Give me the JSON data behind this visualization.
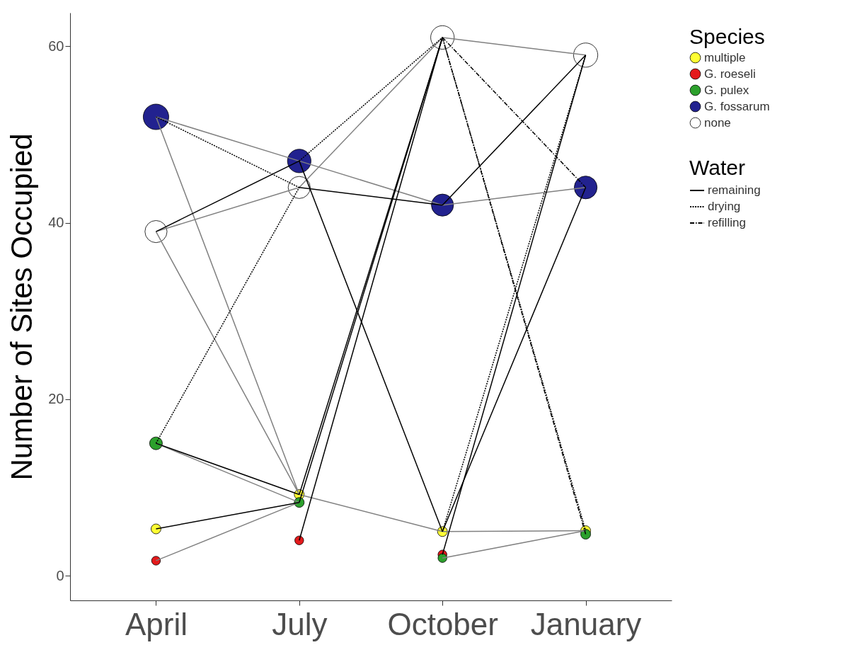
{
  "chart_data": {
    "type": "scatter",
    "ylabel": "Number of Sites Occupied",
    "legend_title": "Species",
    "annotations": [
      "Water"
    ],
    "categories": [
      "April",
      "July",
      "October",
      "January"
    ],
    "ylim": [
      -2.8,
      63.8
    ],
    "yticks": [
      0,
      20,
      40,
      60
    ],
    "legend": "top right",
    "series": [
      {
        "type": "line",
        "color": "#808080",
        "line_style": "solid",
        "x": [
          "April",
          "July"
        ],
        "values": [
          52,
          47
        ]
      },
      {
        "type": "line",
        "color": "#808080",
        "line_style": "solid",
        "x": [
          "April",
          "July"
        ],
        "values": [
          39,
          44
        ]
      },
      {
        "type": "line",
        "color": "#808080",
        "line_style": "solid",
        "x": [
          "July",
          "October"
        ],
        "values": [
          44,
          61
        ]
      },
      {
        "type": "line",
        "color": "#808080",
        "line_style": "solid",
        "x": [
          "July",
          "October"
        ],
        "values": [
          47,
          42
        ]
      },
      {
        "type": "line",
        "color": "#808080",
        "line_style": "solid",
        "x": [
          "October",
          "January"
        ],
        "values": [
          61,
          59
        ]
      },
      {
        "type": "line",
        "color": "#808080",
        "line_style": "solid",
        "x": [
          "October",
          "January"
        ],
        "values": [
          42,
          44
        ]
      },
      {
        "type": "line",
        "color": "#808080",
        "line_style": "solid",
        "x": [
          "April",
          "July"
        ],
        "values": [
          15,
          8.3
        ]
      },
      {
        "type": "line",
        "color": "#808080",
        "line_style": "solid",
        "x": [
          "April",
          "July"
        ],
        "values": [
          39,
          9.2
        ]
      },
      {
        "type": "line",
        "color": "#808080",
        "line_style": "solid",
        "x": [
          "April",
          "July"
        ],
        "values": [
          52,
          9.2
        ]
      },
      {
        "type": "line",
        "color": "#808080",
        "line_style": "solid",
        "x": [
          "July",
          "October"
        ],
        "values": [
          9.2,
          5
        ]
      },
      {
        "type": "line",
        "color": "#808080",
        "line_style": "solid",
        "x": [
          "October",
          "January"
        ],
        "values": [
          5,
          5.1
        ]
      },
      {
        "type": "line",
        "color": "#808080",
        "line_style": "solid",
        "x": [
          "October",
          "January"
        ],
        "values": [
          2,
          5.1
        ]
      },
      {
        "type": "line",
        "color": "#808080",
        "line_style": "solid",
        "x": [
          "April",
          "July"
        ],
        "values": [
          1.7,
          8.3
        ]
      },
      {
        "type": "line",
        "name": "remaining",
        "color": "#000000",
        "line_style": "solid",
        "x": [
          "April",
          "July"
        ],
        "values": [
          39,
          47
        ]
      },
      {
        "type": "line",
        "color": "#000000",
        "line_style": "solid",
        "x": [
          "April",
          "July"
        ],
        "values": [
          15,
          9.2
        ]
      },
      {
        "type": "line",
        "color": "#000000",
        "line_style": "solid",
        "x": [
          "April",
          "July"
        ],
        "values": [
          5.3,
          8.3
        ]
      },
      {
        "type": "line",
        "color": "#000000",
        "line_style": "solid",
        "x": [
          "July",
          "October"
        ],
        "values": [
          44,
          42
        ]
      },
      {
        "type": "line",
        "color": "#000000",
        "line_style": "solid",
        "x": [
          "July",
          "October"
        ],
        "values": [
          47,
          5
        ]
      },
      {
        "type": "line",
        "color": "#000000",
        "line_style": "solid",
        "x": [
          "July",
          "October"
        ],
        "values": [
          9.2,
          61
        ]
      },
      {
        "type": "line",
        "color": "#000000",
        "line_style": "solid",
        "x": [
          "July",
          "October"
        ],
        "values": [
          8.3,
          61
        ]
      },
      {
        "type": "line",
        "color": "#000000",
        "line_style": "solid",
        "x": [
          "July",
          "October"
        ],
        "values": [
          4,
          61
        ]
      },
      {
        "type": "line",
        "color": "#000000",
        "line_style": "solid",
        "x": [
          "October",
          "January"
        ],
        "values": [
          42,
          59
        ]
      },
      {
        "type": "line",
        "color": "#000000",
        "line_style": "solid",
        "x": [
          "October",
          "January"
        ],
        "values": [
          5,
          44
        ]
      },
      {
        "type": "line",
        "color": "#000000",
        "line_style": "solid",
        "x": [
          "October",
          "January"
        ],
        "values": [
          2.4,
          59
        ]
      },
      {
        "type": "line",
        "name": "drying",
        "color": "#000000",
        "line_style": "dotted",
        "x": [
          "April",
          "July"
        ],
        "values": [
          52,
          44
        ]
      },
      {
        "type": "line",
        "color": "#000000",
        "line_style": "dotted",
        "x": [
          "July",
          "October"
        ],
        "values": [
          47,
          61
        ]
      },
      {
        "type": "line",
        "color": "#000000",
        "line_style": "dotted",
        "x": [
          "April",
          "July"
        ],
        "values": [
          15,
          44
        ]
      },
      {
        "type": "line",
        "color": "#000000",
        "line_style": "dotted",
        "x": [
          "October",
          "January"
        ],
        "values": [
          61,
          5.1
        ]
      },
      {
        "type": "line",
        "color": "#000000",
        "line_style": "dotted",
        "x": [
          "October",
          "January"
        ],
        "values": [
          5,
          59
        ]
      },
      {
        "type": "line",
        "name": "refilling",
        "color": "#000000",
        "line_style": "dashdot",
        "x": [
          "October",
          "January"
        ],
        "values": [
          61,
          44
        ]
      },
      {
        "type": "line",
        "color": "#000000",
        "line_style": "dashdot",
        "x": [
          "October",
          "January"
        ],
        "values": [
          61,
          4.7
        ]
      },
      {
        "type": "scatter",
        "name": "multiple",
        "color": "#ffff33",
        "marker": "circle",
        "x": [
          "April",
          "July",
          "October",
          "January"
        ],
        "values": [
          5.3,
          9.2,
          5,
          5.1
        ],
        "sizes": [
          0.15,
          0.15,
          0.15,
          0.15
        ]
      },
      {
        "type": "scatter",
        "name": "G. roeseli",
        "color": "#e41a1c",
        "marker": "circle",
        "x": [
          "April",
          "July",
          "October"
        ],
        "values": [
          1.7,
          4,
          2.4
        ],
        "sizes": [
          0.12,
          0.12,
          0.12
        ]
      },
      {
        "type": "scatter",
        "name": "G. pulex",
        "color": "#2ca02c",
        "marker": "circle",
        "x": [
          "April",
          "July",
          "October",
          "January"
        ],
        "values": [
          15,
          8.3,
          2,
          4.7
        ],
        "sizes": [
          0.25,
          0.15,
          0.12,
          0.15
        ]
      },
      {
        "type": "scatter",
        "name": "G. fossarum",
        "color": "#22228f",
        "marker": "circle",
        "x": [
          "April",
          "July",
          "October",
          "January"
        ],
        "values": [
          52,
          47,
          42,
          44
        ],
        "sizes": [
          1,
          0.85,
          0.75,
          0.8
        ]
      },
      {
        "type": "scatter",
        "name": "none",
        "color": "#ffffff",
        "marker": "circle",
        "x": [
          "April",
          "July",
          "October",
          "January"
        ],
        "values": [
          39,
          44,
          61,
          59
        ],
        "sizes": [
          0.75,
          0.75,
          0.85,
          0.9
        ]
      }
    ]
  }
}
